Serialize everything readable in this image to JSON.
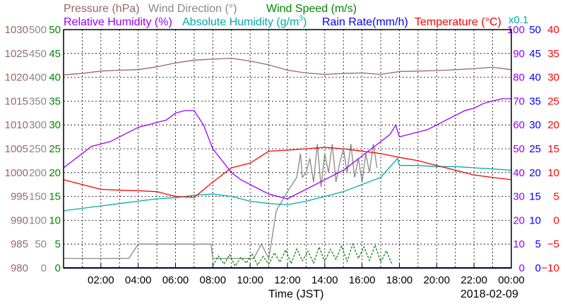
{
  "chart_data": {
    "type": "line",
    "date": "2018-02-09",
    "xlabel": "Time (JST)",
    "x_ticks": [
      "02:00",
      "04:00",
      "06:00",
      "08:00",
      "10:00",
      "12:00",
      "14:00",
      "16:00",
      "18:00",
      "20:00",
      "22:00",
      "00:00"
    ],
    "xlim": [
      0,
      24
    ],
    "grid": true,
    "legend_top": [
      {
        "name": "Pressure (hPa)",
        "color": "#996666"
      },
      {
        "name": "Wind Direction (°)",
        "color": "#888888"
      },
      {
        "name": "Wind Speed (m/s)",
        "color": "#008800"
      }
    ],
    "legend_second": [
      {
        "name": "Relative Humidity (%)",
        "color": "#9900ff"
      },
      {
        "name": "Absolute Humidity (g/m",
        "sup": "3",
        "close": ")",
        "color": "#00aaaa"
      },
      {
        "name": "Rain Rate(mm/h)",
        "color": "#0000ff"
      },
      {
        "name": "Temperature (°C)",
        "color": "#ff0000"
      }
    ],
    "multiplier_note": "x0.1",
    "axes": {
      "pressure": {
        "ticks": [
          "980",
          "985",
          "990",
          "995",
          "1000",
          "1005",
          "1010",
          "1015",
          "1020",
          "1025",
          "1030"
        ],
        "range": [
          980,
          1030
        ],
        "color": "#996666"
      },
      "wind_direction": {
        "ticks": [
          "0",
          "50",
          "100",
          "150",
          "200",
          "250",
          "300",
          "350",
          "400",
          "450",
          "500"
        ],
        "range": [
          0,
          500
        ],
        "color": "#888888"
      },
      "wind_speed": {
        "ticks": [
          "0",
          "5",
          "10",
          "15",
          "20",
          "25",
          "30",
          "35",
          "40",
          "45",
          "50"
        ],
        "range": [
          0,
          50
        ],
        "color": "#008800"
      },
      "humidity": {
        "ticks": [
          "0",
          "10",
          "20",
          "30",
          "40",
          "50",
          "60",
          "70",
          "80",
          "90",
          "100"
        ],
        "range": [
          0,
          100
        ],
        "color": "#9900ff"
      },
      "rain_rate": {
        "ticks": [
          "0",
          "5",
          "10",
          "15",
          "20",
          "25",
          "30",
          "35",
          "40",
          "45",
          "50"
        ],
        "range": [
          0,
          50
        ],
        "color": "#0000ff"
      },
      "temperature": {
        "ticks": [
          "−10",
          "−5",
          "0",
          "5",
          "10",
          "15",
          "20",
          "25",
          "30",
          "35",
          "40"
        ],
        "range": [
          -10,
          40
        ],
        "color": "#ff0000"
      }
    },
    "series": [
      {
        "name": "Pressure",
        "color": "#996666",
        "axis": "pressure",
        "x": [
          0,
          1,
          2,
          3,
          4,
          5,
          6,
          7,
          8,
          9,
          10,
          11,
          12,
          13,
          14,
          15,
          16,
          17,
          18,
          19,
          20,
          21,
          22,
          23,
          24
        ],
        "y": [
          1020.5,
          1020.8,
          1021.3,
          1021.5,
          1021.6,
          1022.2,
          1023,
          1023.6,
          1023.8,
          1024,
          1023.4,
          1022.6,
          1021.5,
          1020.9,
          1020.6,
          1020.8,
          1020.9,
          1020.6,
          1021.2,
          1021.3,
          1021.4,
          1021.6,
          1021.8,
          1022.1,
          1021.6
        ]
      },
      {
        "name": "Wind Direction",
        "color": "#888888",
        "axis": "wind_direction",
        "x": [
          0,
          3.5,
          4,
          7.9,
          8,
          10.2,
          10.6,
          11,
          11.4,
          12,
          12.5,
          12.7,
          12.8,
          13,
          13.2,
          13.4,
          13.6,
          13.8,
          14,
          14.2,
          14.4,
          14.6,
          14.8,
          15,
          15.2,
          15.4,
          15.6,
          15.8,
          16,
          16.2,
          16.4,
          16.6,
          16.8
        ],
        "y": [
          20,
          20,
          50,
          50,
          20,
          20,
          50,
          20,
          120,
          160,
          190,
          240,
          190,
          200,
          230,
          180,
          260,
          170,
          240,
          200,
          260,
          180,
          220,
          250,
          200,
          260,
          190,
          230,
          180,
          240,
          200,
          260,
          210
        ]
      },
      {
        "name": "Wind Speed",
        "color": "#008800",
        "axis": "wind_speed",
        "x": [
          8,
          8.3,
          8.6,
          8.9,
          9.2,
          9.5,
          9.8,
          10.1,
          10.4,
          10.7,
          11,
          11.3,
          11.6,
          11.9,
          12.2,
          12.5,
          12.8,
          13.1,
          13.4,
          13.7,
          14,
          14.3,
          14.6,
          14.9,
          15.2,
          15.5,
          15.8,
          16.1,
          16.4,
          16.7,
          17,
          17.3,
          17.6
        ],
        "y": [
          0.5,
          2.5,
          0.8,
          2.8,
          0.4,
          2.2,
          1,
          3,
          0.6,
          2.4,
          0.8,
          3.2,
          1.2,
          3.8,
          0.9,
          4,
          1.5,
          3.5,
          1,
          4.4,
          1.3,
          3.9,
          1.8,
          4.6,
          1.4,
          5,
          2,
          4.4,
          1.6,
          4.8,
          1.2,
          3.6,
          0.8
        ]
      },
      {
        "name": "Relative Humidity",
        "color": "#9900ff",
        "axis": "humidity",
        "x": [
          0,
          0.5,
          1,
          1.5,
          2,
          2.5,
          3,
          3.5,
          4,
          4.5,
          5,
          5.5,
          6,
          6.5,
          7,
          7.5,
          8,
          8.5,
          9,
          9.5,
          10,
          10.5,
          11,
          11.5,
          12,
          12.5,
          13,
          13.5,
          14,
          14.5,
          15,
          15.5,
          16,
          16.5,
          17,
          17.5,
          17.8,
          18,
          18.5,
          19,
          19.5,
          20,
          20.5,
          21,
          21.5,
          22,
          22.5,
          23,
          23.5,
          24
        ],
        "y": [
          42,
          45,
          48,
          51,
          52,
          53,
          55,
          57,
          59,
          60,
          61,
          62,
          65,
          66,
          66,
          60,
          50,
          45,
          40,
          37,
          35,
          33,
          31,
          30,
          29,
          31,
          33,
          35,
          37,
          39,
          41,
          44,
          47,
          50,
          53,
          56,
          60,
          55,
          56,
          57,
          58,
          60,
          62,
          64,
          66,
          67,
          69,
          70,
          71,
          71
        ]
      },
      {
        "name": "Absolute Humidity",
        "color": "#00aaaa",
        "axis": "humidity",
        "x": [
          0,
          1,
          2,
          3,
          4,
          5,
          6,
          7,
          8,
          9,
          10,
          11,
          12,
          13,
          14,
          15,
          16,
          17,
          17.9,
          18,
          19,
          20,
          21,
          22,
          23,
          24
        ],
        "y": [
          24,
          25,
          26,
          27,
          28,
          29,
          29.5,
          30.5,
          31,
          30,
          28,
          27,
          26.5,
          28,
          30,
          32,
          35,
          38,
          46,
          43,
          43,
          42.5,
          42.5,
          42,
          41.5,
          41
        ]
      },
      {
        "name": "Rain Rate",
        "color": "#0000ff",
        "axis": "rain_rate",
        "x": [
          0,
          24
        ],
        "y": [
          0,
          0
        ]
      },
      {
        "name": "Temperature",
        "color": "#ff0000",
        "axis": "temperature",
        "x": [
          0,
          1,
          2,
          3,
          4,
          5,
          6,
          7,
          8,
          9,
          10,
          11,
          12,
          13,
          14,
          15,
          16,
          17,
          18,
          19,
          20,
          21,
          22,
          23,
          24
        ],
        "y": [
          8.5,
          7.5,
          6.5,
          6.3,
          6.2,
          6,
          5,
          4.8,
          8,
          11,
          12,
          14.5,
          14.7,
          15,
          15.3,
          15,
          14.5,
          14,
          13.2,
          12.5,
          11.5,
          10.5,
          9.5,
          9,
          8.5
        ]
      }
    ]
  }
}
